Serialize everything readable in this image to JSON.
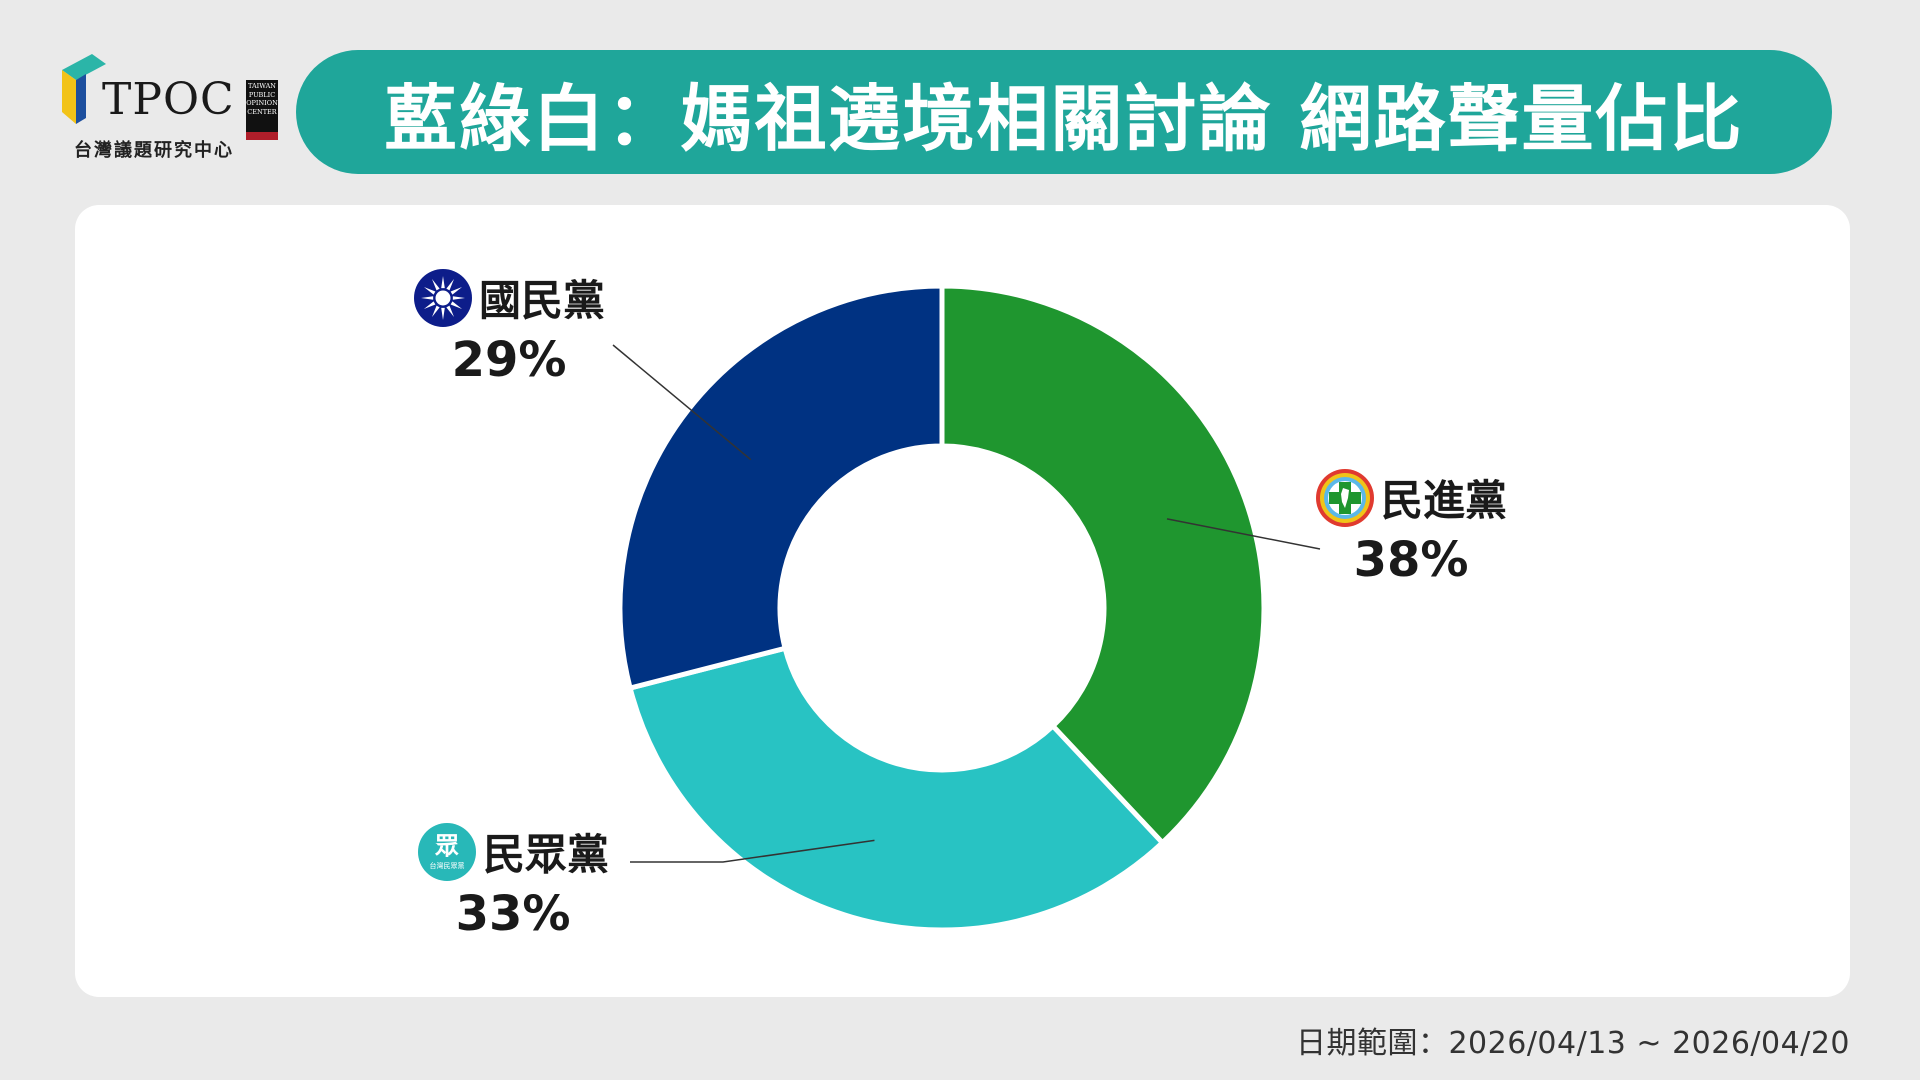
{
  "logo": {
    "brand": "TPOC",
    "badge_lines": [
      "TAIWAN",
      "PUBLIC",
      "OPINION",
      "CENTER"
    ],
    "subtitle": "台灣議題研究中心"
  },
  "title": "藍綠白：媽祖遶境相關討論 網路聲量佔比",
  "chart_data": {
    "type": "pie",
    "donut": true,
    "slices": [
      {
        "label": "民進黨",
        "value": 38,
        "display": "38%",
        "color": "#1f962f"
      },
      {
        "label": "民眾黨",
        "value": 33,
        "display": "33%",
        "color": "#28c3c3"
      },
      {
        "label": "國民黨",
        "value": 29,
        "display": "29%",
        "color": "#003282"
      }
    ],
    "start": "top",
    "direction": "clockwise"
  },
  "icons": {
    "kmt": "kmt-emblem-icon",
    "dpp": "dpp-emblem-icon",
    "tpp": "tpp-emblem-icon",
    "tpp_text": "眾",
    "tpp_sub": "台灣民眾黨"
  },
  "date_range": "日期範圍：2026/04/13 ~ 2026/04/20"
}
